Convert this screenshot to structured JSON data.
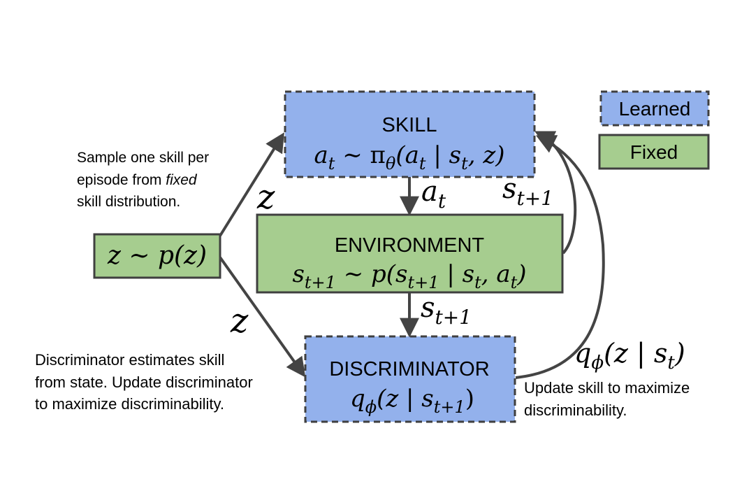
{
  "colors": {
    "learned": "#93b1ec",
    "fixed": "#a6cd8f",
    "border": "#3f3f3f",
    "arrow": "#444444"
  },
  "legend": {
    "learned_label": "Learned",
    "fixed_label": "Fixed"
  },
  "skill": {
    "title": "SKILL",
    "eq": {
      "a": "a",
      "t1": "t",
      "rel": " ∼ π",
      "theta": "θ",
      "open": "(a",
      "t2": "t",
      "bar": " | s",
      "t3": "t",
      "close": ", z)"
    }
  },
  "environment": {
    "title": "ENVIRONMENT",
    "eq": {
      "s1": "s",
      "sub1": "t+1",
      "rel": " ∼ p(s",
      "sub2": "t+1",
      "bar": " | s",
      "sub3": "t",
      "mid": ", a",
      "sub4": "t",
      "close": ")"
    }
  },
  "discriminator": {
    "title": "DISCRIMINATOR",
    "eq": {
      "q": "q",
      "phi": "ϕ",
      "open": "(z | s",
      "sub": "t+1",
      "close": ")"
    }
  },
  "prior": {
    "eq": "z ∼ p(z)"
  },
  "edges": {
    "a_t": {
      "base": "a",
      "sub": "t"
    },
    "s_next_right": {
      "base": "s",
      "sub": "t+1"
    },
    "s_next_down": {
      "base": "s",
      "sub": "t+1"
    },
    "z_upper": "z",
    "z_lower": "z",
    "reward": {
      "q": "q",
      "phi": "ϕ",
      "rest": "(z | s",
      "sub": "t",
      "close": ")"
    }
  },
  "notes": {
    "sample_line1": "Sample one skill per",
    "sample_line2_pre": "episode from ",
    "sample_line2_em": "fixed",
    "sample_line3": "skill distribution.",
    "disc_line1": "Discriminator estimates skill",
    "disc_line2": "from state. Update discriminator",
    "disc_line3": "to maximize discriminability.",
    "update_line1": "Update skill to maximize",
    "update_line2": "discriminability."
  }
}
